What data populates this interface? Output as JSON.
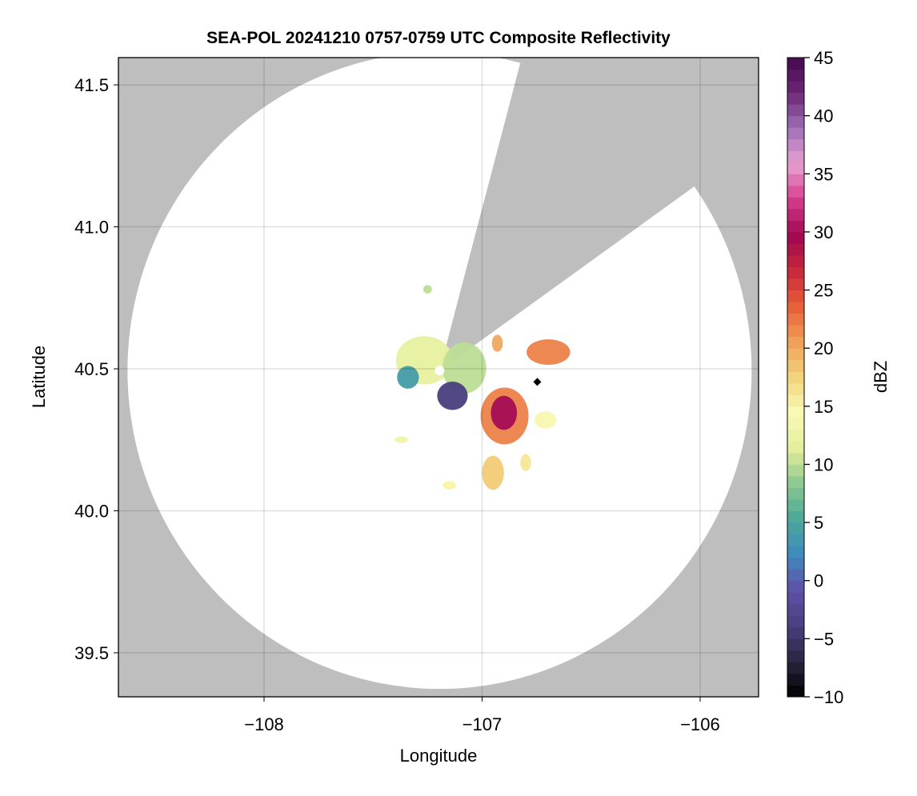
{
  "chart_data": {
    "type": "heatmap",
    "title": "SEA-POL 20241210 0757-0759 UTC Composite Reflectivity",
    "xlabel": "Longitude",
    "ylabel": "Latitude",
    "xlim": [
      -108.668,
      -105.732
    ],
    "ylim": [
      39.345,
      41.596
    ],
    "xticks": [
      -108,
      -107,
      -106
    ],
    "xtick_labels": [
      "−108",
      "−107",
      "−106"
    ],
    "yticks": [
      39.5,
      40.0,
      40.5,
      41.0,
      41.5
    ],
    "ytick_labels": [
      "39.5",
      "40.0",
      "40.5",
      "41.0",
      "41.5"
    ],
    "grid": true,
    "background_color": "#bebebe",
    "colorbar": {
      "label": "dBZ",
      "range": [
        -10,
        45
      ],
      "step": 1,
      "ticks": [
        -10,
        -5,
        0,
        5,
        10,
        15,
        20,
        25,
        30,
        35,
        40,
        45
      ],
      "tick_labels": [
        "−10",
        "−5",
        "0",
        "5",
        "10",
        "15",
        "20",
        "25",
        "30",
        "35",
        "40",
        "45"
      ],
      "colormap_stops": [
        "#000000",
        "#2a2540",
        "#4a3f80",
        "#6050a8",
        "#3f8ac0",
        "#4aa898",
        "#8cc890",
        "#e4ee9a",
        "#fafab4",
        "#f2d47c",
        "#f0a058",
        "#e86038",
        "#c8283c",
        "#a00850",
        "#d43c8c",
        "#e8a0d0",
        "#a070b8",
        "#6c2878",
        "#44084c"
      ]
    },
    "radar_center": {
      "lon": -107.195,
      "lat": 40.494
    },
    "marker": {
      "lon": -106.747,
      "lat": 40.454,
      "shape": "diamond"
    },
    "echoes": [
      {
        "lon": -107.265,
        "lat": 40.53,
        "rlon": 0.13,
        "rlat": 0.085,
        "dbz": 12
      },
      {
        "lon": -107.34,
        "lat": 40.47,
        "rlon": 0.05,
        "rlat": 0.04,
        "dbz": 4
      },
      {
        "lon": -107.081,
        "lat": 40.503,
        "rlon": 0.1,
        "rlat": 0.09,
        "dbz": 10
      },
      {
        "lon": -107.136,
        "lat": 40.405,
        "rlon": 0.07,
        "rlat": 0.05,
        "dbz": -4
      },
      {
        "lon": -106.897,
        "lat": 40.334,
        "rlon": 0.11,
        "rlat": 0.1,
        "dbz": 22
      },
      {
        "lon": -106.9,
        "lat": 40.345,
        "rlon": 0.06,
        "rlat": 0.06,
        "dbz": 30
      },
      {
        "lon": -106.696,
        "lat": 40.559,
        "rlon": 0.1,
        "rlat": 0.045,
        "dbz": 22
      },
      {
        "lon": -106.95,
        "lat": 40.134,
        "rlon": 0.05,
        "rlat": 0.06,
        "dbz": 18
      },
      {
        "lon": -106.93,
        "lat": 40.59,
        "rlon": 0.025,
        "rlat": 0.03,
        "dbz": 20
      },
      {
        "lon": -106.71,
        "lat": 40.32,
        "rlon": 0.05,
        "rlat": 0.03,
        "dbz": 14
      },
      {
        "lon": -106.8,
        "lat": 40.17,
        "rlon": 0.025,
        "rlat": 0.03,
        "dbz": 16
      },
      {
        "lon": -107.25,
        "lat": 40.78,
        "rlon": 0.02,
        "rlat": 0.015,
        "dbz": 10
      },
      {
        "lon": -107.37,
        "lat": 40.25,
        "rlon": 0.03,
        "rlat": 0.012,
        "dbz": 13
      },
      {
        "lon": -107.15,
        "lat": 40.09,
        "rlon": 0.03,
        "rlat": 0.015,
        "dbz": 15
      }
    ]
  }
}
